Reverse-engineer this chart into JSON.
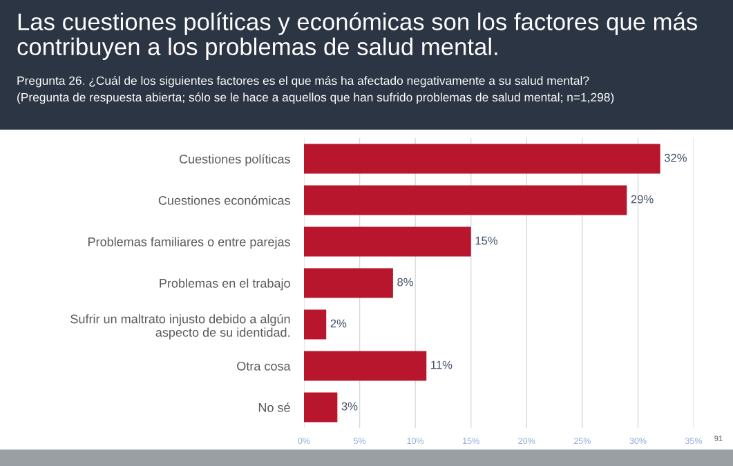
{
  "chart_data": {
    "type": "bar",
    "orientation": "horizontal",
    "title": "Las cuestiones políticas y económicas son los factores que más\ncontribuyen a los problemas de salud mental.",
    "subtitle": "Pregunta 26. ¿Cuál de los siguientes factores es el que más ha afectado negativamente a su salud mental?\n(Pregunta de respuesta abierta; sólo se le hace a aquellos que han sufrido problemas de salud mental; n=1,298)",
    "categories": [
      "Cuestiones políticas",
      "Cuestiones económicas",
      "Problemas familiares o entre parejas",
      "Problemas en el trabajo",
      "Sufrir un maltrato injusto debido a algún\naspecto de su identidad.",
      "Otra cosa",
      "No sé"
    ],
    "values": [
      32,
      29,
      15,
      8,
      2,
      11,
      3
    ],
    "value_labels": [
      "32%",
      "29%",
      "15%",
      "8%",
      "2%",
      "11%",
      "3%"
    ],
    "color": "#b8162c",
    "xlim": [
      0,
      35
    ],
    "xticks": [
      {
        "value": 0,
        "label": "0%"
      },
      {
        "value": 5,
        "label": "5%"
      },
      {
        "value": 10,
        "label": "10%"
      },
      {
        "value": 15,
        "label": "15%"
      },
      {
        "value": 20,
        "label": "20%"
      },
      {
        "value": 25,
        "label": "25%"
      },
      {
        "value": 30,
        "label": "30%"
      },
      {
        "value": 35,
        "label": "35%"
      }
    ],
    "grid": "x",
    "annotations": [
      "91"
    ]
  }
}
